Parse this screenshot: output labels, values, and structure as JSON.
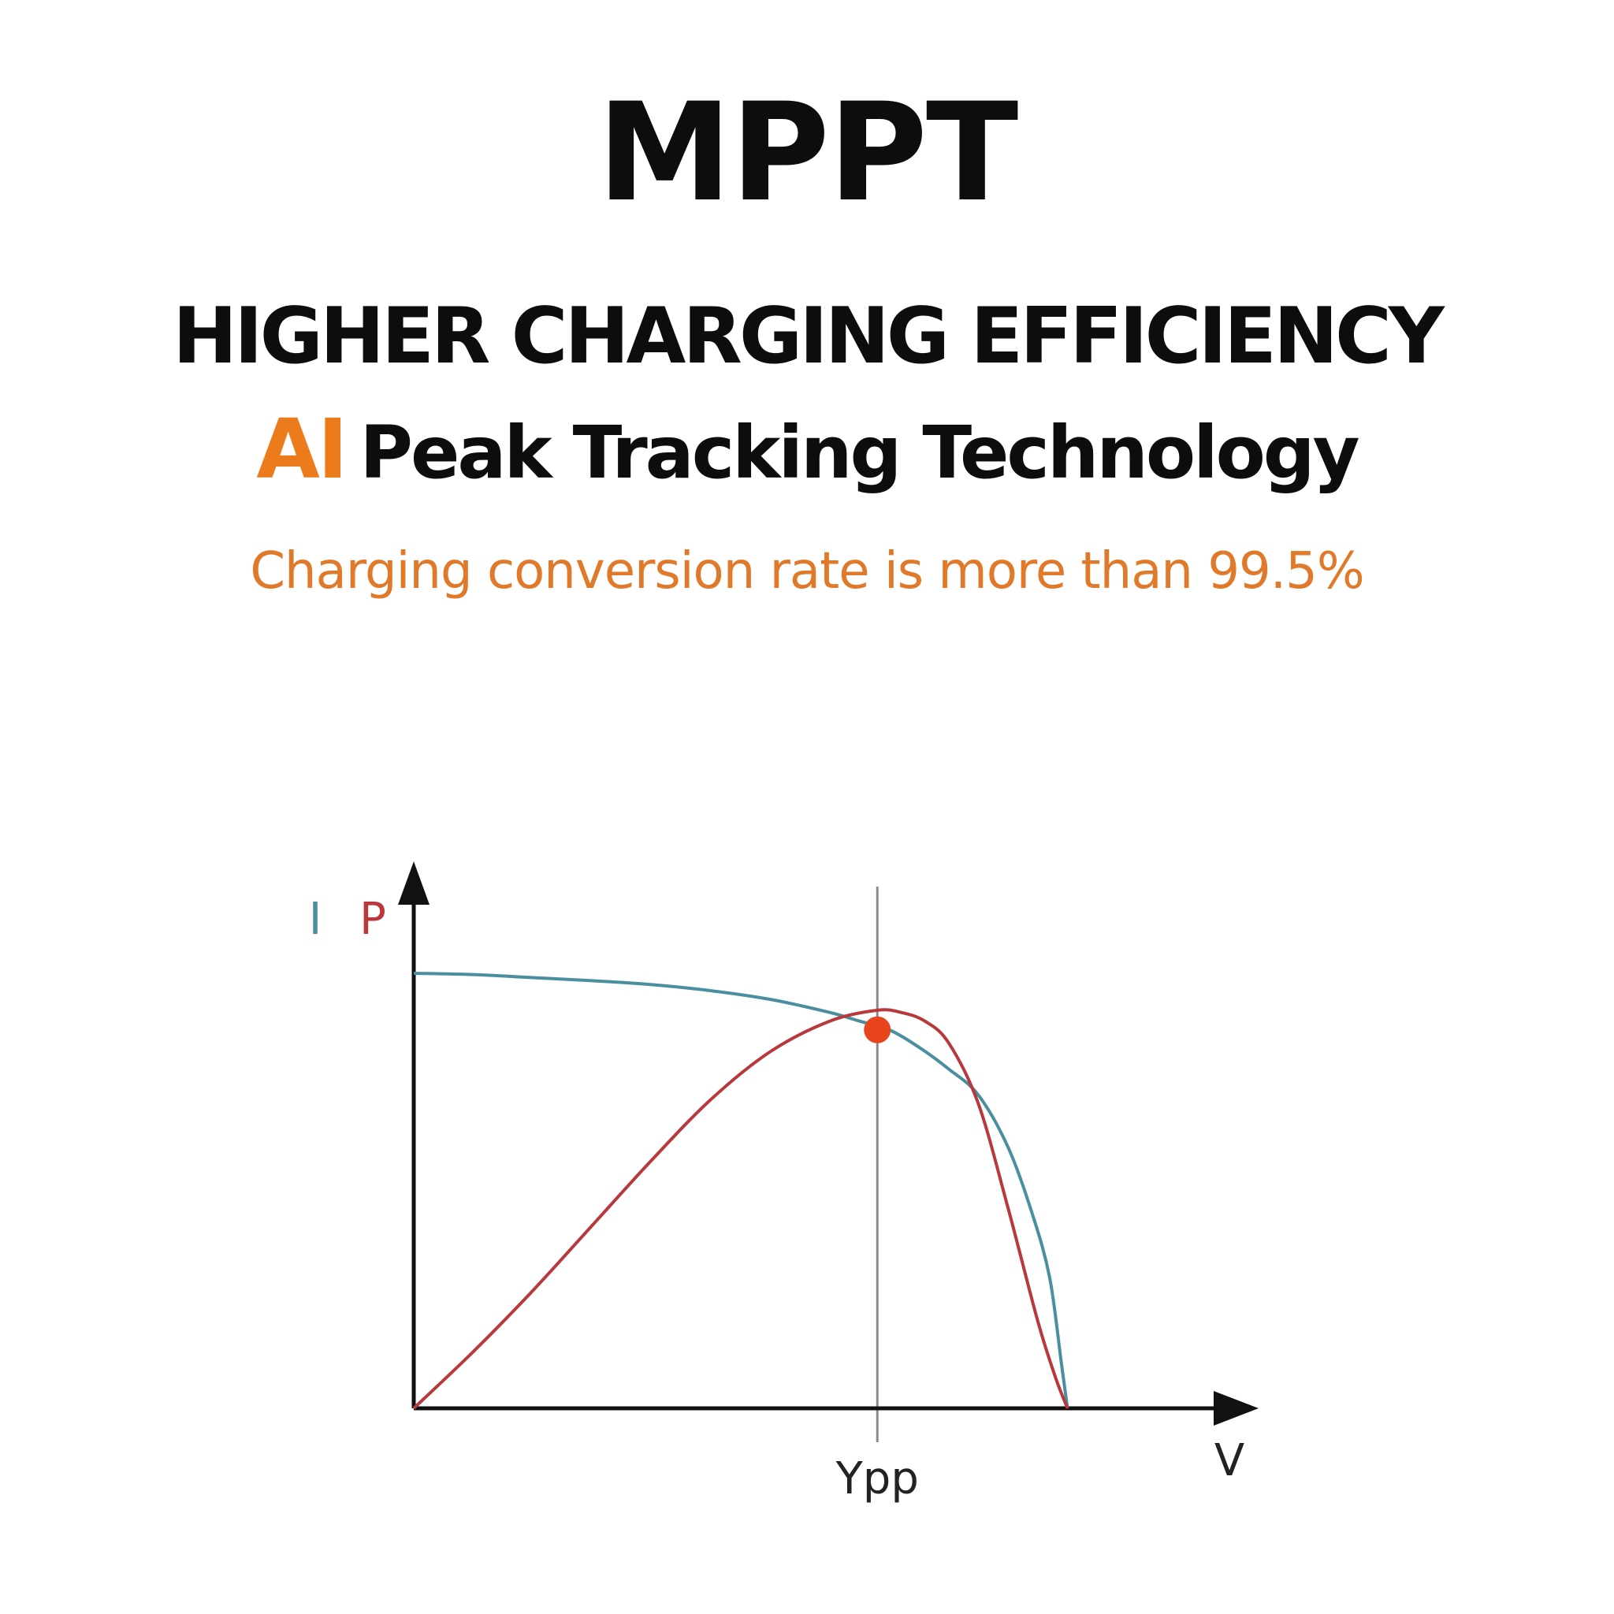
{
  "header": {
    "title": "MPPT",
    "headline": "HIGHER CHARGING EFFICIENCY",
    "subhead_highlight": "AI",
    "subhead_rest": "Peak Tracking Technology",
    "tagline": "Charging conversion rate is more than 99.5%"
  },
  "colors": {
    "title": "#0d0d0d",
    "accent": "#ec7b1c",
    "tagline": "#e07a2a",
    "current_curve": "#4a8fa0",
    "power_curve": "#b8383c",
    "mpp_marker": "#e8451f",
    "axis": "#111111",
    "guide_line": "#8a8a8a"
  },
  "chart_data": {
    "type": "line",
    "title": "",
    "xlabel": "V",
    "ylabel_left": "I",
    "ylabel_right": "P",
    "x_tick_label": "Ypp",
    "xlim": [
      0,
      1.2
    ],
    "ylim": [
      0,
      1.0
    ],
    "grid": false,
    "legend": "none",
    "series": [
      {
        "name": "I",
        "color": "#4a8fa0",
        "x": [
          0,
          0.1,
          0.2,
          0.3,
          0.4,
          0.5,
          0.6,
          0.7,
          0.75,
          0.8,
          0.85,
          0.9,
          0.95,
          1.0,
          1.04,
          1.07,
          1.09,
          1.1
        ],
        "y": [
          1.0,
          0.997,
          0.99,
          0.983,
          0.974,
          0.96,
          0.94,
          0.91,
          0.89,
          0.87,
          0.83,
          0.78,
          0.72,
          0.6,
          0.45,
          0.3,
          0.1,
          0.0
        ]
      },
      {
        "name": "P",
        "color": "#b8383c",
        "x": [
          0,
          0.1,
          0.2,
          0.3,
          0.4,
          0.5,
          0.6,
          0.7,
          0.78,
          0.82,
          0.86,
          0.9,
          0.95,
          1.0,
          1.05,
          1.08,
          1.1
        ],
        "y": [
          0,
          0.13,
          0.27,
          0.42,
          0.57,
          0.71,
          0.82,
          0.89,
          0.915,
          0.91,
          0.89,
          0.84,
          0.7,
          0.46,
          0.2,
          0.07,
          0.0
        ]
      }
    ],
    "markers": [
      {
        "x": 0.78,
        "y": 0.87,
        "color": "#e8451f"
      }
    ],
    "guide_x": 0.78
  }
}
